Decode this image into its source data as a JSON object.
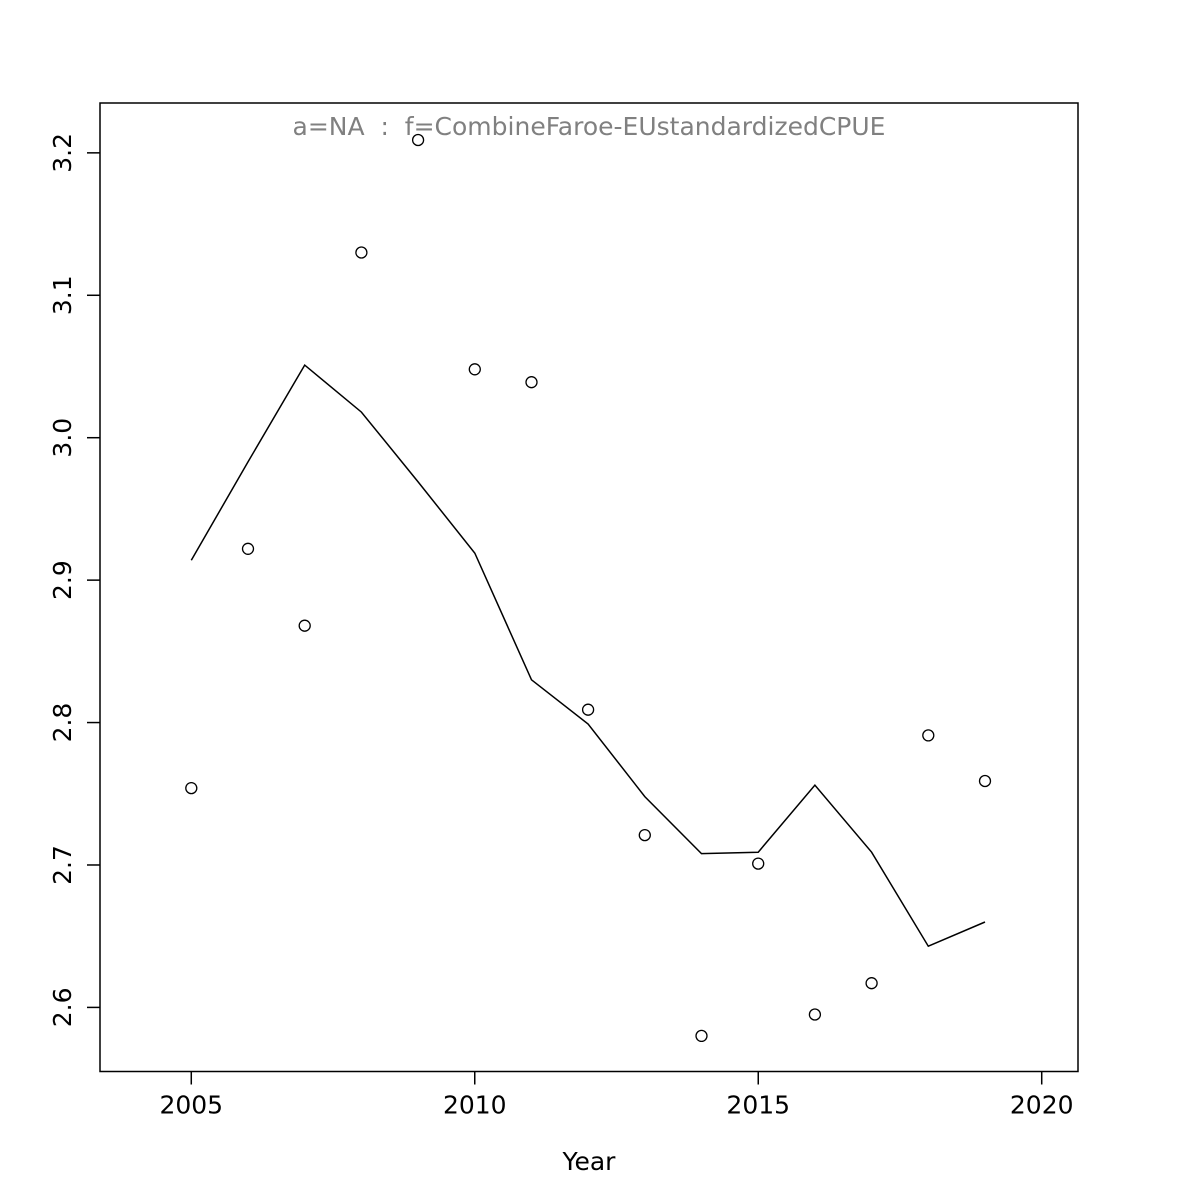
{
  "chart_data": {
    "type": "scatter",
    "title": "a=NA  :  f=CombineFaroe-EUstandardizedCPUE",
    "title_color": "#808080",
    "xlabel": "Year",
    "ylabel": "",
    "x": [
      2005,
      2006,
      2007,
      2008,
      2009,
      2010,
      2011,
      2012,
      2013,
      2014,
      2015,
      2016,
      2017,
      2018,
      2019
    ],
    "series": [
      {
        "name": "observed-points",
        "type": "scatter",
        "marker": "open-circle",
        "color": "#000000",
        "values": [
          2.754,
          2.922,
          2.868,
          3.13,
          3.209,
          3.048,
          3.039,
          2.809,
          2.721,
          2.58,
          2.701,
          2.595,
          2.617,
          2.791,
          2.759
        ]
      },
      {
        "name": "fitted-line",
        "type": "line",
        "color": "#000000",
        "values": [
          2.914,
          2.983,
          3.051,
          3.018,
          2.969,
          2.919,
          2.83,
          2.799,
          2.748,
          2.708,
          2.709,
          2.756,
          2.709,
          2.643,
          2.66
        ]
      }
    ],
    "xticks": [
      2005,
      2010,
      2015,
      2020
    ],
    "xtick_labels": [
      "2005",
      "2010",
      "2015",
      "2020"
    ],
    "yticks": [
      2.6,
      2.7,
      2.8,
      2.9,
      3.0,
      3.1,
      3.2
    ],
    "ytick_labels": [
      "2.6",
      "2.7",
      "2.8",
      "2.9",
      "3.0",
      "3.1",
      "3.2"
    ],
    "xlim": [
      2003.39,
      2020.64
    ],
    "ylim": [
      2.555,
      3.235
    ],
    "grid": false,
    "legend": "none",
    "axis_color": "#000000",
    "background": "#ffffff"
  }
}
